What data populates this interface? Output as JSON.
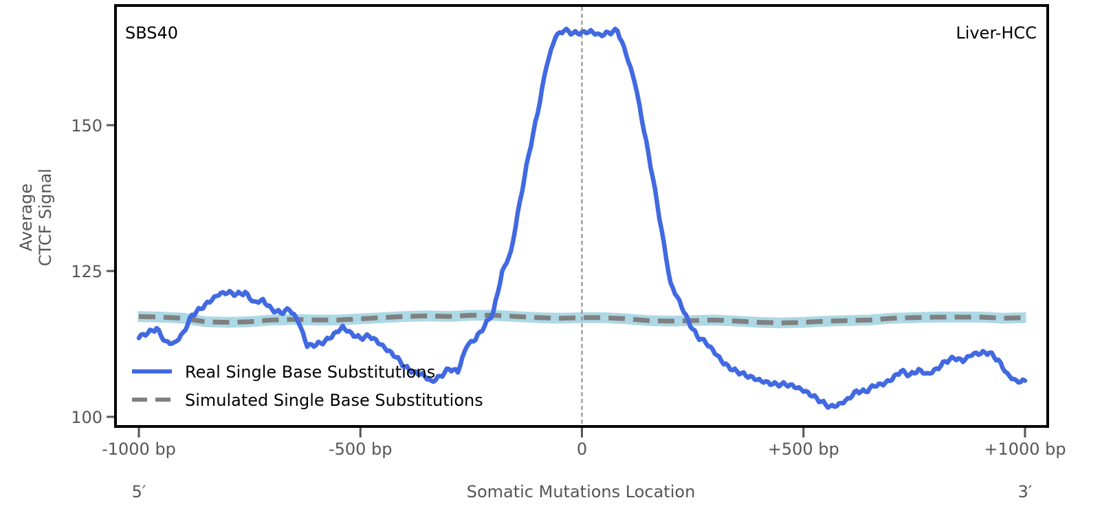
{
  "chart_data": {
    "type": "line",
    "top_left_label": "SBS40",
    "top_right_label": "Liver-HCC",
    "ylabel_lines": [
      "Average",
      "CTCF Signal"
    ],
    "xlabel": "Somatic Mutations Location",
    "x_end_labels": {
      "left": "5′",
      "right": "3′"
    },
    "xlim": [
      -1000,
      1000
    ],
    "ylim": [
      98.5,
      171
    ],
    "xticks": [
      {
        "value": -1000,
        "label": "-1000 bp"
      },
      {
        "value": -500,
        "label": "-500 bp"
      },
      {
        "value": 0,
        "label": "0"
      },
      {
        "value": 500,
        "label": "+500 bp"
      },
      {
        "value": 1000,
        "label": "+1000 bp"
      }
    ],
    "yticks": [
      {
        "value": 100,
        "label": "100"
      },
      {
        "value": 125,
        "label": "125"
      },
      {
        "value": 150,
        "label": "150"
      }
    ],
    "center_line": {
      "x": 0,
      "style": "dashed",
      "color": "#808080"
    },
    "grid": false,
    "legend": {
      "placement": "lower-left",
      "entries": [
        {
          "label": "Real Single Base Substitutions",
          "color": "#4169E1",
          "style": "solid"
        },
        {
          "label": "Simulated Single Base Substitutions",
          "color": "#808080",
          "style": "dashed"
        }
      ]
    },
    "series": [
      {
        "name": "Real Single Base Substitutions",
        "color": "#4169E1",
        "style": "solid",
        "x": [
          -1000,
          -980,
          -960,
          -940,
          -920,
          -900,
          -880,
          -860,
          -840,
          -820,
          -800,
          -780,
          -760,
          -740,
          -720,
          -700,
          -680,
          -660,
          -640,
          -620,
          -600,
          -580,
          -560,
          -540,
          -520,
          -500,
          -480,
          -460,
          -440,
          -420,
          -400,
          -380,
          -360,
          -340,
          -320,
          -300,
          -280,
          -260,
          -240,
          -220,
          -200,
          -180,
          -160,
          -140,
          -120,
          -100,
          -80,
          -60,
          -40,
          -20,
          0,
          20,
          40,
          60,
          80,
          100,
          120,
          140,
          160,
          180,
          200,
          220,
          240,
          260,
          280,
          300,
          320,
          340,
          360,
          380,
          400,
          420,
          440,
          460,
          480,
          500,
          520,
          540,
          560,
          580,
          600,
          620,
          640,
          660,
          680,
          700,
          720,
          740,
          760,
          780,
          800,
          820,
          840,
          860,
          880,
          900,
          920,
          940,
          960,
          980,
          1000
        ],
        "y": [
          113.5,
          114.3,
          115.2,
          113.0,
          112.8,
          114.5,
          117.5,
          118.5,
          119.6,
          120.8,
          121.2,
          121.0,
          121.4,
          119.8,
          120.2,
          118.5,
          117.8,
          118.3,
          116.2,
          112.0,
          112.3,
          113.0,
          114.3,
          115.6,
          114.4,
          113.5,
          113.8,
          112.6,
          111.3,
          110.2,
          108.6,
          107.8,
          107.5,
          106.2,
          107.0,
          108.2,
          107.6,
          112.0,
          113.2,
          115.5,
          118.0,
          125.0,
          128.5,
          137.0,
          145.0,
          152.0,
          160.0,
          165.0,
          166.2,
          165.8,
          166.0,
          166.3,
          165.6,
          165.9,
          166.2,
          162.0,
          157.0,
          149.0,
          141.0,
          132.0,
          123.0,
          120.0,
          116.5,
          113.8,
          112.6,
          110.8,
          109.0,
          108.0,
          107.5,
          107.0,
          106.5,
          106.0,
          105.6,
          105.5,
          105.0,
          104.3,
          103.5,
          102.6,
          101.8,
          102.3,
          103.2,
          104.5,
          104.3,
          105.2,
          105.4,
          106.3,
          107.8,
          107.2,
          108.2,
          107.5,
          108.3,
          109.5,
          110.0,
          109.4,
          110.5,
          110.8,
          111.0,
          109.8,
          107.5,
          106.3,
          106.2
        ]
      },
      {
        "name": "Simulated Single Base Substitutions",
        "color": "#808080",
        "style": "dashed",
        "band_color": "#ADD8E6",
        "band_halfwidth": 0.75,
        "x": [
          -1000,
          -950,
          -900,
          -850,
          -800,
          -750,
          -700,
          -650,
          -600,
          -550,
          -500,
          -450,
          -400,
          -350,
          -300,
          -250,
          -200,
          -150,
          -100,
          -50,
          0,
          50,
          100,
          150,
          200,
          250,
          300,
          350,
          400,
          450,
          500,
          550,
          600,
          650,
          700,
          750,
          800,
          850,
          900,
          950,
          1000
        ],
        "y": [
          117.2,
          117.1,
          116.9,
          116.3,
          116.2,
          116.3,
          116.6,
          116.7,
          116.6,
          116.6,
          116.8,
          117.0,
          117.2,
          117.3,
          117.2,
          117.4,
          117.4,
          117.2,
          117.0,
          116.9,
          117.0,
          117.0,
          116.8,
          116.5,
          116.4,
          116.5,
          116.6,
          116.4,
          116.2,
          116.1,
          116.2,
          116.4,
          116.5,
          116.6,
          116.9,
          117.0,
          117.1,
          117.1,
          117.1,
          116.9,
          117.0
        ]
      }
    ]
  }
}
